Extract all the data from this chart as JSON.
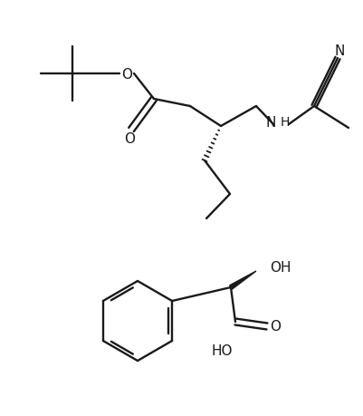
{
  "bg_color": "#ffffff",
  "line_color": "#1a1a1a",
  "line_width": 1.7,
  "font_size": 11,
  "figsize": [
    4.02,
    4.6
  ],
  "dpi": 100,
  "xlim": [
    0,
    402
  ],
  "ylim": [
    0,
    460
  ]
}
